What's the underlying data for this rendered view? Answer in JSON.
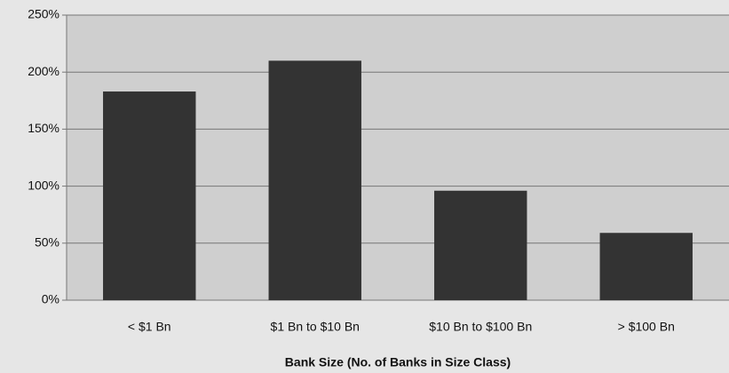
{
  "chart_data": {
    "type": "bar",
    "x_label": "Bank Size (No. of Banks in Size Class)",
    "categories": [
      "< $1 Bn",
      "$1 Bn to $10 Bn",
      "$10 Bn to $100 Bn",
      "> $100 Bn"
    ],
    "values": [
      183,
      210,
      96,
      59
    ],
    "color": "#333333",
    "ylim": [
      0,
      250
    ],
    "yticks": [
      {
        "value": 0,
        "label": "0%"
      },
      {
        "value": 50,
        "label": "50%"
      },
      {
        "value": 100,
        "label": "100%"
      },
      {
        "value": 150,
        "label": "150%"
      },
      {
        "value": 200,
        "label": "200%"
      },
      {
        "value": 250,
        "label": "250%"
      }
    ],
    "grid": true
  }
}
